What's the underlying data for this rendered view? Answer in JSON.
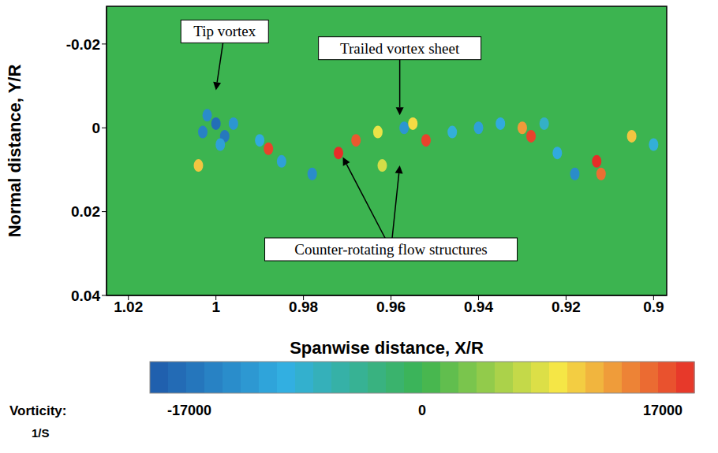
{
  "chart_data": {
    "type": "scatter",
    "x_label": "Spanwise distance, X/R",
    "y_label": "Normal distance, Y/R",
    "xlim": [
      1.025,
      0.897
    ],
    "xticks": [
      1.02,
      1,
      0.98,
      0.96,
      0.94,
      0.92,
      0.9
    ],
    "ylim": [
      0.04,
      -0.029
    ],
    "yticks": [
      -0.02,
      0,
      0.02,
      0.04
    ],
    "x": [
      1.0,
      1.003,
      0.998,
      1.002,
      0.996,
      0.999,
      1.004,
      0.988,
      0.99,
      0.985,
      0.978,
      0.972,
      0.968,
      0.963,
      0.962,
      0.957,
      0.952,
      0.955,
      0.946,
      0.94,
      0.935,
      0.928,
      0.93,
      0.918,
      0.922,
      0.913,
      0.912,
      0.905,
      0.9,
      0.925
    ],
    "y": [
      -0.001,
      0.001,
      0.002,
      -0.003,
      -0.001,
      0.004,
      0.009,
      0.005,
      0.003,
      0.008,
      0.011,
      0.006,
      0.003,
      0.001,
      0.009,
      0.0,
      0.003,
      -0.001,
      0.001,
      0.0,
      -0.001,
      0.002,
      0.0,
      0.011,
      0.006,
      0.008,
      0.011,
      0.002,
      0.004,
      -0.001
    ],
    "vorticity": [
      -15000,
      -13000,
      -14000,
      -12000,
      -11000,
      -10000,
      10000,
      16000,
      -9000,
      -10000,
      -12000,
      17000,
      15000,
      8000,
      7000,
      -11000,
      16000,
      9000,
      -8000,
      -10000,
      -9000,
      16000,
      12000,
      -12000,
      -9000,
      17000,
      14000,
      10000,
      -8000,
      -7000
    ],
    "colorbar": {
      "label": "Vorticity:",
      "units": "1/S",
      "range": [
        -17000,
        17000
      ],
      "ticks": [
        -17000,
        0,
        17000
      ]
    },
    "annotations": [
      {
        "text": "Tip vortex",
        "x": 0.998,
        "y": -0.023,
        "arrows": [
          {
            "x": 1.0,
            "y": -0.009
          }
        ]
      },
      {
        "text": "Trailed vortex sheet",
        "x": 0.958,
        "y": -0.019,
        "arrows": [
          {
            "x": 0.958,
            "y": -0.003
          }
        ]
      },
      {
        "text": "Counter-rotating flow structures",
        "x": 0.96,
        "y": 0.029,
        "arrows": [
          {
            "x": 0.971,
            "y": 0.007
          },
          {
            "x": 0.958,
            "y": 0.009
          }
        ]
      }
    ]
  }
}
